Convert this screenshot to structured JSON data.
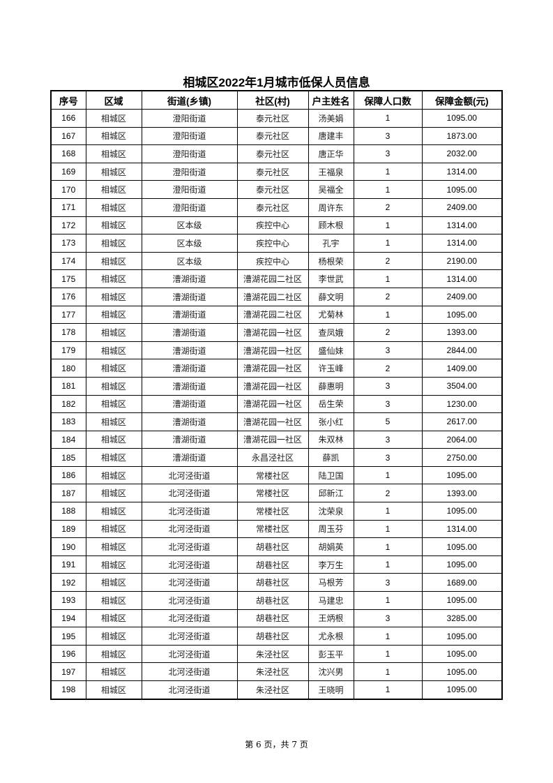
{
  "title": "相城区2022年1月城市低保人员信息",
  "columns": [
    "序号",
    "区域",
    "街道(乡镇)",
    "社区(村)",
    "户主姓名",
    "保障人口数",
    "保障金额(元)"
  ],
  "rows": [
    [
      "166",
      "相城区",
      "澄阳街道",
      "泰元社区",
      "汤美娟",
      "1",
      "1095.00"
    ],
    [
      "167",
      "相城区",
      "澄阳街道",
      "泰元社区",
      "唐建丰",
      "3",
      "1873.00"
    ],
    [
      "168",
      "相城区",
      "澄阳街道",
      "泰元社区",
      "唐正华",
      "3",
      "2032.00"
    ],
    [
      "169",
      "相城区",
      "澄阳街道",
      "泰元社区",
      "王福泉",
      "1",
      "1314.00"
    ],
    [
      "170",
      "相城区",
      "澄阳街道",
      "泰元社区",
      "吴福全",
      "1",
      "1095.00"
    ],
    [
      "171",
      "相城区",
      "澄阳街道",
      "泰元社区",
      "周许东",
      "2",
      "2409.00"
    ],
    [
      "172",
      "相城区",
      "区本级",
      "疾控中心",
      "顾木根",
      "1",
      "1314.00"
    ],
    [
      "173",
      "相城区",
      "区本级",
      "疾控中心",
      "孔宇",
      "1",
      "1314.00"
    ],
    [
      "174",
      "相城区",
      "区本级",
      "疾控中心",
      "杨根荣",
      "2",
      "2190.00"
    ],
    [
      "175",
      "相城区",
      "漕湖街道",
      "漕湖花园二社区",
      "李世武",
      "1",
      "1314.00"
    ],
    [
      "176",
      "相城区",
      "漕湖街道",
      "漕湖花园二社区",
      "薛文明",
      "2",
      "2409.00"
    ],
    [
      "177",
      "相城区",
      "漕湖街道",
      "漕湖花园二社区",
      "尤菊林",
      "1",
      "1095.00"
    ],
    [
      "178",
      "相城区",
      "漕湖街道",
      "漕湖花园一社区",
      "查凤娥",
      "2",
      "1393.00"
    ],
    [
      "179",
      "相城区",
      "漕湖街道",
      "漕湖花园一社区",
      "盛仙妹",
      "3",
      "2844.00"
    ],
    [
      "180",
      "相城区",
      "漕湖街道",
      "漕湖花园一社区",
      "许玉峰",
      "2",
      "1409.00"
    ],
    [
      "181",
      "相城区",
      "漕湖街道",
      "漕湖花园一社区",
      "薛惠明",
      "3",
      "3504.00"
    ],
    [
      "182",
      "相城区",
      "漕湖街道",
      "漕湖花园一社区",
      "岳生荣",
      "3",
      "1230.00"
    ],
    [
      "183",
      "相城区",
      "漕湖街道",
      "漕湖花园一社区",
      "张小红",
      "5",
      "2617.00"
    ],
    [
      "184",
      "相城区",
      "漕湖街道",
      "漕湖花园一社区",
      "朱双林",
      "3",
      "2064.00"
    ],
    [
      "185",
      "相城区",
      "漕湖街道",
      "永昌泾社区",
      "薛凯",
      "3",
      "2750.00"
    ],
    [
      "186",
      "相城区",
      "北河泾街道",
      "常楼社区",
      "陆卫国",
      "1",
      "1095.00"
    ],
    [
      "187",
      "相城区",
      "北河泾街道",
      "常楼社区",
      "邱新江",
      "2",
      "1393.00"
    ],
    [
      "188",
      "相城区",
      "北河泾街道",
      "常楼社区",
      "沈荣泉",
      "1",
      "1095.00"
    ],
    [
      "189",
      "相城区",
      "北河泾街道",
      "常楼社区",
      "周玉芬",
      "1",
      "1314.00"
    ],
    [
      "190",
      "相城区",
      "北河泾街道",
      "胡巷社区",
      "胡娟英",
      "1",
      "1095.00"
    ],
    [
      "191",
      "相城区",
      "北河泾街道",
      "胡巷社区",
      "李万生",
      "1",
      "1095.00"
    ],
    [
      "192",
      "相城区",
      "北河泾街道",
      "胡巷社区",
      "马根芳",
      "3",
      "1689.00"
    ],
    [
      "193",
      "相城区",
      "北河泾街道",
      "胡巷社区",
      "马建忠",
      "1",
      "1095.00"
    ],
    [
      "194",
      "相城区",
      "北河泾街道",
      "胡巷社区",
      "王炳根",
      "3",
      "3285.00"
    ],
    [
      "195",
      "相城区",
      "北河泾街道",
      "胡巷社区",
      "尤永根",
      "1",
      "1095.00"
    ],
    [
      "196",
      "相城区",
      "北河泾街道",
      "朱泾社区",
      "彭玉平",
      "1",
      "1095.00"
    ],
    [
      "197",
      "相城区",
      "北河泾街道",
      "朱泾社区",
      "沈兴男",
      "1",
      "1095.00"
    ],
    [
      "198",
      "相城区",
      "北河泾街道",
      "朱泾社区",
      "王晓明",
      "1",
      "1095.00"
    ]
  ],
  "footer": "第 6 页，共 7 页"
}
